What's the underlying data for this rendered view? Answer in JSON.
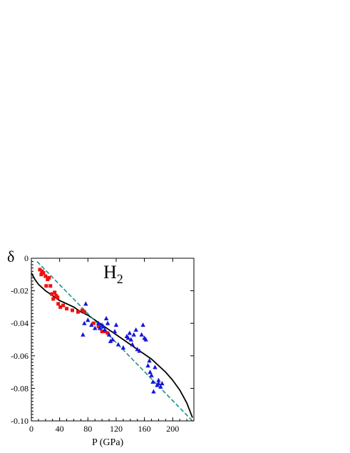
{
  "chart_data": {
    "type": "scatter",
    "title": "H",
    "title_subscript": "2",
    "xlabel": "P (GPa)",
    "ylabel": "δ",
    "xlim": [
      0,
      230
    ],
    "ylim": [
      -0.1,
      0.0
    ],
    "x_ticks": [
      0,
      40,
      80,
      120,
      160,
      200
    ],
    "x_tick_labels": [
      "0",
      "40",
      "80",
      "120",
      "160",
      "200"
    ],
    "y_ticks": [
      0,
      -0.02,
      -0.04,
      -0.06,
      -0.08,
      -0.1
    ],
    "y_tick_labels": [
      "0",
      "-0.02",
      "-0.04",
      "-0.06",
      "-0.08",
      "-0.10"
    ],
    "grid": false,
    "legend": "none",
    "series": [
      {
        "marker": "square",
        "color": "#ee1111",
        "points": [
          [
            12,
            -0.007
          ],
          [
            14,
            -0.01
          ],
          [
            15,
            -0.008
          ],
          [
            17,
            -0.009
          ],
          [
            20,
            -0.011
          ],
          [
            21,
            -0.017
          ],
          [
            23,
            -0.013
          ],
          [
            25,
            -0.012
          ],
          [
            27,
            -0.017
          ],
          [
            29,
            -0.022
          ],
          [
            31,
            -0.025
          ],
          [
            33,
            -0.021
          ],
          [
            35,
            -0.023
          ],
          [
            37,
            -0.024
          ],
          [
            38,
            -0.028
          ],
          [
            41,
            -0.03
          ],
          [
            45,
            -0.029
          ],
          [
            50,
            -0.031
          ],
          [
            58,
            -0.032
          ],
          [
            66,
            -0.033
          ],
          [
            72,
            -0.032
          ],
          [
            75,
            -0.033
          ],
          [
            88,
            -0.04
          ],
          [
            95,
            -0.042
          ],
          [
            100,
            -0.045
          ],
          [
            104,
            -0.045
          ],
          [
            108,
            -0.046
          ]
        ]
      },
      {
        "marker": "triangle",
        "color": "#1515dd",
        "points": [
          [
            73,
            -0.047
          ],
          [
            75,
            -0.04
          ],
          [
            77,
            -0.028
          ],
          [
            80,
            -0.038
          ],
          [
            85,
            -0.041
          ],
          [
            90,
            -0.043
          ],
          [
            95,
            -0.04
          ],
          [
            97,
            -0.043
          ],
          [
            100,
            -0.041
          ],
          [
            102,
            -0.042
          ],
          [
            104,
            -0.044
          ],
          [
            106,
            -0.037
          ],
          [
            108,
            -0.04
          ],
          [
            110,
            -0.047
          ],
          [
            112,
            -0.051
          ],
          [
            115,
            -0.05
          ],
          [
            118,
            -0.045
          ],
          [
            120,
            -0.041
          ],
          [
            123,
            -0.053
          ],
          [
            130,
            -0.055
          ],
          [
            135,
            -0.048
          ],
          [
            137,
            -0.049
          ],
          [
            139,
            -0.046
          ],
          [
            141,
            -0.05
          ],
          [
            143,
            -0.053
          ],
          [
            145,
            -0.047
          ],
          [
            148,
            -0.044
          ],
          [
            150,
            -0.056
          ],
          [
            153,
            -0.057
          ],
          [
            156,
            -0.047
          ],
          [
            158,
            -0.041
          ],
          [
            160,
            -0.049
          ],
          [
            162,
            -0.05
          ],
          [
            165,
            -0.066
          ],
          [
            167,
            -0.063
          ],
          [
            168,
            -0.07
          ],
          [
            170,
            -0.072
          ],
          [
            172,
            -0.076
          ],
          [
            173,
            -0.082
          ],
          [
            175,
            -0.067
          ],
          [
            178,
            -0.078
          ],
          [
            180,
            -0.075
          ],
          [
            183,
            -0.079
          ],
          [
            185,
            -0.077
          ],
          [
            180,
            -0.077
          ]
        ]
      },
      {
        "marker": "none",
        "style": "solid",
        "color": "#000000",
        "points": [
          [
            0,
            -0.009
          ],
          [
            5,
            -0.013
          ],
          [
            10,
            -0.016
          ],
          [
            20,
            -0.02
          ],
          [
            30,
            -0.023
          ],
          [
            40,
            -0.026
          ],
          [
            50,
            -0.028
          ],
          [
            60,
            -0.03
          ],
          [
            70,
            -0.033
          ],
          [
            80,
            -0.035
          ],
          [
            90,
            -0.038
          ],
          [
            100,
            -0.041
          ],
          [
            110,
            -0.044
          ],
          [
            120,
            -0.047
          ],
          [
            130,
            -0.05
          ],
          [
            140,
            -0.053
          ],
          [
            150,
            -0.056
          ],
          [
            160,
            -0.059
          ],
          [
            170,
            -0.062
          ],
          [
            180,
            -0.066
          ],
          [
            190,
            -0.07
          ],
          [
            200,
            -0.075
          ],
          [
            210,
            -0.081
          ],
          [
            220,
            -0.089
          ],
          [
            228,
            -0.098
          ]
        ]
      },
      {
        "marker": "none",
        "style": "dashed",
        "color": "#1a9090",
        "points": [
          [
            8,
            -0.002
          ],
          [
            228,
            -0.1
          ]
        ]
      }
    ]
  }
}
